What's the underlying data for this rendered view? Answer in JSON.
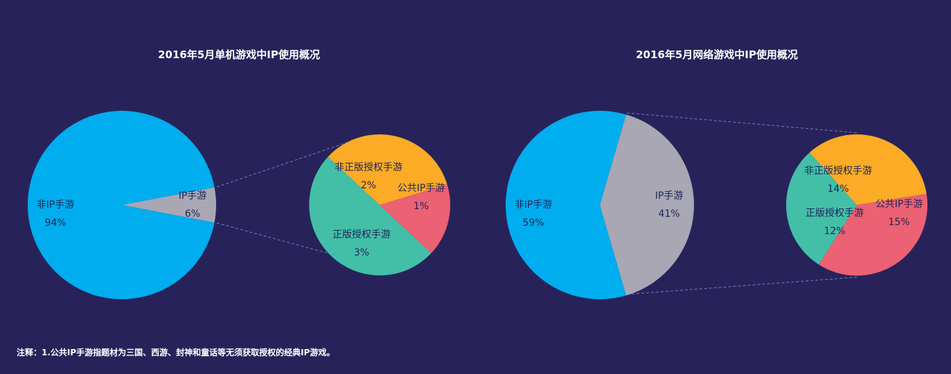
{
  "footnote": "注释：1.公共IP手游指题材为三国、西游、封神和童话等无须获取授权的经典IP游戏。",
  "chart_data": [
    {
      "type": "pie",
      "title": "2016年5月单机游戏中IP使用概况",
      "main": {
        "slices": [
          {
            "name": "非IP手游",
            "label": "非IP手游",
            "value": 94,
            "value_label": "94%",
            "color": "#00adef"
          },
          {
            "name": "IP手游",
            "label": "IP手游",
            "value": 6,
            "value_label": "6%",
            "color": "#a8a7b3"
          }
        ]
      },
      "breakdown": {
        "of": "IP手游",
        "slices": [
          {
            "name": "非正版授权手游",
            "label": "非正版授权手游",
            "value": 2,
            "value_label": "2%",
            "color": "#fbab25"
          },
          {
            "name": "公共IP手游",
            "label": "公共IP手游",
            "value": 1,
            "value_label": "1%",
            "color": "#ec6173"
          },
          {
            "name": "正版授权手游",
            "label": "正版授权手游",
            "value": 3,
            "value_label": "3%",
            "color": "#43bfa8"
          }
        ]
      }
    },
    {
      "type": "pie",
      "title": "2016年5月网络游戏中IP使用概况",
      "main": {
        "slices": [
          {
            "name": "非IP手游",
            "label": "非IP手游",
            "value": 59,
            "value_label": "59%",
            "color": "#00adef"
          },
          {
            "name": "IP手游",
            "label": "IP手游",
            "value": 41,
            "value_label": "41%",
            "color": "#a8a7b3"
          }
        ]
      },
      "breakdown": {
        "of": "IP手游",
        "slices": [
          {
            "name": "非正版授权手游",
            "label": "非正版授权手游",
            "value": 14,
            "value_label": "14%",
            "color": "#fbab25"
          },
          {
            "name": "公共IP手游",
            "label": "公共IP手游",
            "value": 15,
            "value_label": "15%",
            "color": "#ec6173"
          },
          {
            "name": "正版授权手游",
            "label": "正版授权手游",
            "value": 12,
            "value_label": "12%",
            "color": "#43bfa8"
          }
        ]
      }
    }
  ]
}
